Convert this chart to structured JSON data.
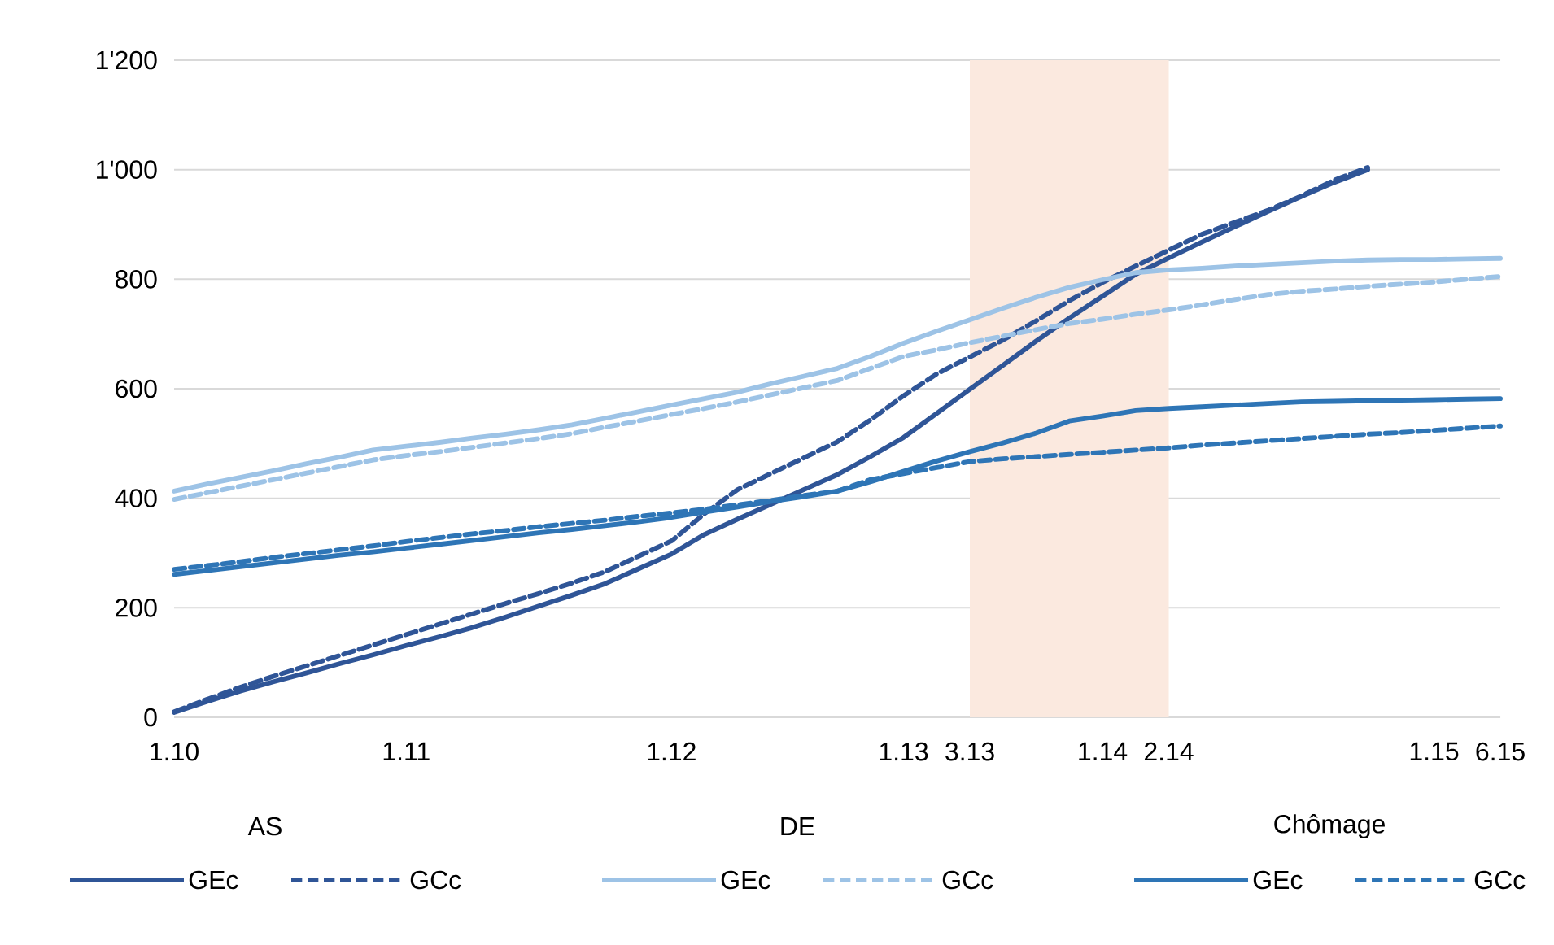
{
  "chart_data": {
    "type": "line",
    "categories": [
      "1.10",
      null,
      null,
      null,
      null,
      null,
      null,
      "1.11",
      null,
      null,
      null,
      null,
      null,
      null,
      null,
      "1.12",
      null,
      null,
      null,
      null,
      null,
      null,
      "1.13",
      null,
      "3.13",
      null,
      null,
      null,
      "1.14",
      null,
      "2.14",
      null,
      null,
      null,
      null,
      null,
      null,
      null,
      "1.15",
      null,
      "6.15"
    ],
    "ylim": [
      0,
      1200
    ],
    "yticks": [
      0,
      200,
      400,
      600,
      800,
      {
        "value": 1000,
        "label": "1'000"
      },
      {
        "value": 1200,
        "label": "1'200"
      }
    ],
    "grid": "y",
    "legend": "bottom",
    "bands": [
      {
        "axis": "x",
        "from": "3.13",
        "to": "2.14",
        "color": "#fbe9df"
      }
    ],
    "annotations": [
      "AS",
      "DE",
      "Chômage"
    ],
    "series": [
      {
        "name": "GEc",
        "color": "#2f5597",
        "line_style": "solid",
        "values": [
          9,
          29,
          48,
          65,
          81,
          98,
          114,
          131,
          147,
          164,
          183,
          203,
          223,
          244,
          271,
          298,
          334,
          362,
          389,
          416,
          443,
          476,
          511,
          555,
          599,
          643,
          687,
          729,
          769,
          809,
          839,
          868,
          896,
          924,
          951,
          977,
          1000,
          null,
          null,
          null,
          null
        ]
      },
      {
        "name": "GCc",
        "color": "#2f5597",
        "line_style": "dashed",
        "values": [
          10,
          33,
          55,
          75,
          94,
          113,
          132,
          151,
          170,
          189,
          208,
          226,
          245,
          266,
          294,
          322,
          372,
          416,
          445,
          474,
          503,
          543,
          587,
          627,
          658,
          689,
          724,
          761,
          794,
          824,
          853,
          882,
          904,
          926,
          952,
          981,
          1004,
          null,
          null,
          null,
          null
        ]
      },
      {
        "name": "GEc",
        "color": "#9dc3e6",
        "line_style": "solid",
        "values": [
          413,
          426,
          438,
          450,
          463,
          475,
          488,
          495,
          502,
          510,
          517,
          525,
          534,
          546,
          558,
          570,
          582,
          594,
          609,
          623,
          637,
          659,
          683,
          705,
          726,
          747,
          767,
          785,
          799,
          812,
          817,
          820,
          824,
          827,
          830,
          833,
          835,
          836,
          836,
          837,
          838
        ]
      },
      {
        "name": "GCc",
        "color": "#9dc3e6",
        "line_style": "dashed",
        "values": [
          398,
          410,
          422,
          434,
          446,
          458,
          470,
          478,
          485,
          493,
          501,
          509,
          518,
          530,
          541,
          553,
          564,
          576,
          589,
          602,
          615,
          637,
          659,
          671,
          684,
          696,
          708,
          719,
          727,
          736,
          744,
          753,
          763,
          772,
          778,
          782,
          787,
          791,
          795,
          800,
          805
        ]
      },
      {
        "name": "GEc",
        "color": "#2e75b6",
        "line_style": "solid",
        "values": [
          261,
          268,
          275,
          282,
          289,
          296,
          302,
          309,
          316,
          323,
          330,
          337,
          343,
          350,
          357,
          365,
          375,
          384,
          394,
          403,
          413,
          430,
          449,
          468,
          485,
          501,
          519,
          541,
          550,
          560,
          564,
          567,
          570,
          573,
          576,
          577,
          578,
          579,
          580,
          581,
          582
        ]
      },
      {
        "name": "GCc",
        "color": "#2e75b6",
        "line_style": "dashed",
        "values": [
          270,
          277,
          284,
          292,
          299,
          306,
          313,
          321,
          328,
          335,
          341,
          348,
          354,
          360,
          367,
          373,
          380,
          388,
          396,
          405,
          413,
          434,
          445,
          456,
          467,
          472,
          476,
          480,
          484,
          488,
          492,
          497,
          501,
          505,
          509,
          513,
          517,
          520,
          524,
          528,
          532
        ]
      }
    ]
  }
}
